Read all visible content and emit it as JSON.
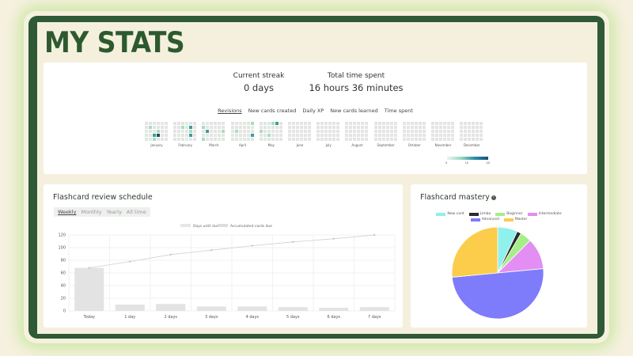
{
  "page": {
    "title": "MY STATS"
  },
  "stats": {
    "streak": {
      "label": "Current streak",
      "value": "0 days"
    },
    "time": {
      "label": "Total time spent",
      "value": "16 hours 36 minutes"
    }
  },
  "heatmap": {
    "tabs": [
      {
        "label": "Revisions",
        "active": true
      },
      {
        "label": "New cards created",
        "active": false
      },
      {
        "label": "Daily XP",
        "active": false
      },
      {
        "label": "New cards learned",
        "active": false
      },
      {
        "label": "Time spent",
        "active": false
      }
    ],
    "months": [
      "January",
      "February",
      "March",
      "April",
      "May",
      "June",
      "July",
      "August",
      "September",
      "October",
      "November",
      "December"
    ],
    "scale_labels": [
      "0",
      "10",
      "40"
    ],
    "colors": {
      "empty": "#e4e4e4",
      "low": "#d9f0dc",
      "mid": "#a8dcc0",
      "high": "#3e9c96",
      "max": "#1e4e63"
    }
  },
  "schedule": {
    "title": "Flashcard review schedule",
    "periods": [
      {
        "label": "Weekly",
        "active": true
      },
      {
        "label": "Monthly",
        "active": false
      },
      {
        "label": "Yearly",
        "active": false
      },
      {
        "label": "All time",
        "active": false
      }
    ]
  },
  "mastery": {
    "title": "Flashcard mastery",
    "info_icon": "info-icon",
    "legend": [
      {
        "label": "New card",
        "color": "#8ff0ec"
      },
      {
        "label": "Limbo",
        "color": "#2b2b2b"
      },
      {
        "label": "Beginner",
        "color": "#a6ee88"
      },
      {
        "label": "Intermediate",
        "color": "#e38ef2"
      },
      {
        "label": "Advanced",
        "color": "#7e7cfb"
      },
      {
        "label": "Master",
        "color": "#fbcd4b"
      }
    ]
  },
  "chart_data": [
    {
      "type": "bar",
      "title": "",
      "categories": [
        "Today",
        "1 day",
        "2 days",
        "3 days",
        "4 days",
        "5 days",
        "6 days",
        "7 days"
      ],
      "series": [
        {
          "name": "Days until due",
          "type": "bar",
          "values": [
            68,
            10,
            11,
            7,
            7,
            6,
            5,
            6
          ],
          "color": "#e3e3e3"
        },
        {
          "name": "Accumulated cards due",
          "type": "line",
          "values": [
            68,
            78,
            89,
            96,
            103,
            109,
            114,
            120
          ],
          "color": "#cfcfcf"
        }
      ],
      "xlabel": "",
      "ylabel": "",
      "ylim": [
        0,
        120
      ],
      "yticks": [
        0,
        20,
        40,
        60,
        80,
        100,
        120
      ],
      "grid": true,
      "legend_position": "top"
    },
    {
      "type": "pie",
      "title": "",
      "categories": [
        "New card",
        "Limbo",
        "Beginner",
        "Intermediate",
        "Advanced",
        "Master"
      ],
      "values": [
        7,
        1.5,
        4,
        11,
        50,
        26.5
      ],
      "colors": [
        "#8ff0ec",
        "#2b2b2b",
        "#a6ee88",
        "#e38ef2",
        "#7e7cfb",
        "#fbcd4b"
      ],
      "legend_position": "top"
    }
  ]
}
